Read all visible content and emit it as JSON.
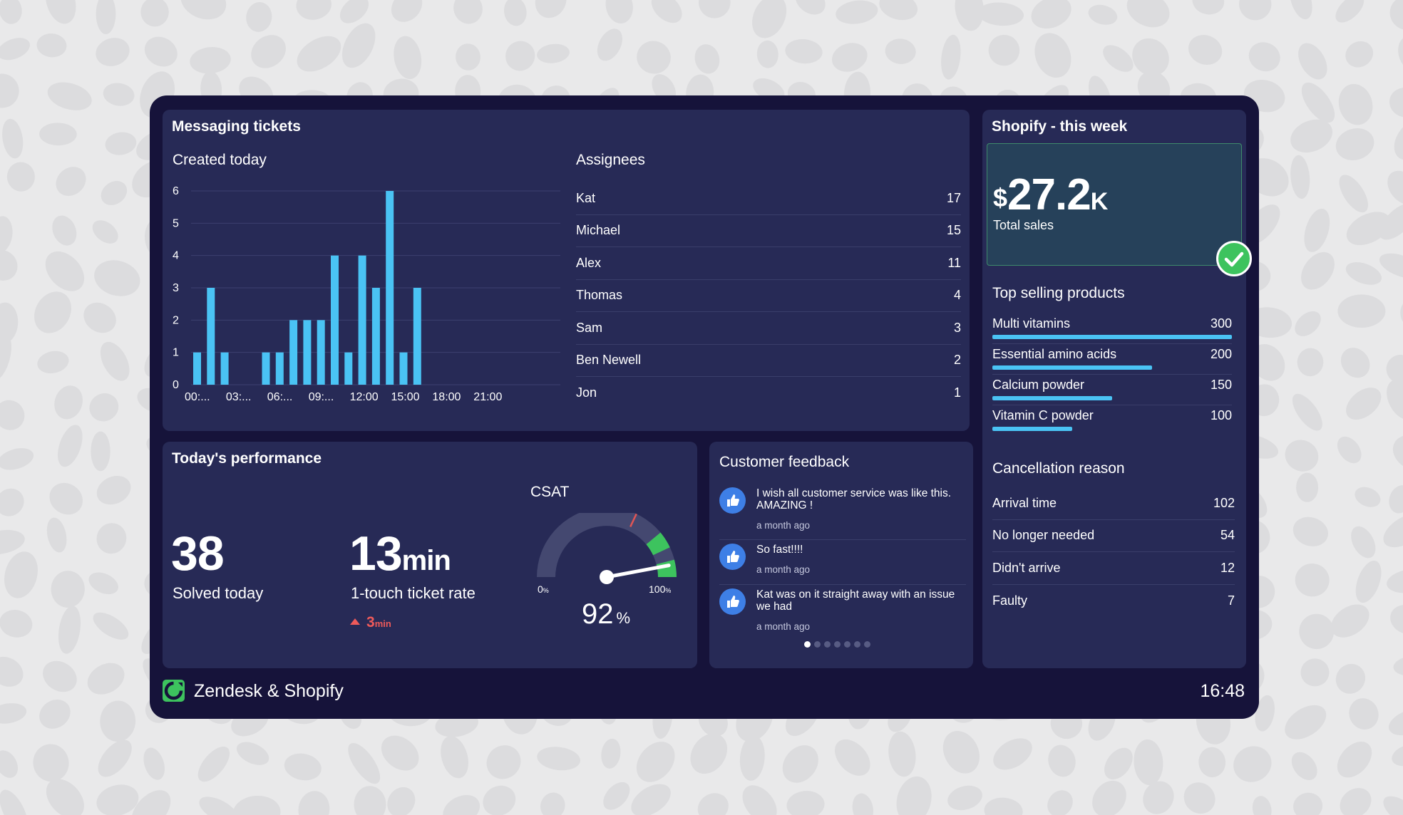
{
  "messaging": {
    "title": "Messaging tickets",
    "chart_title": "Created today",
    "assignees_title": "Assignees",
    "assignees": [
      {
        "name": "Kat",
        "count": "17"
      },
      {
        "name": "Michael",
        "count": "15"
      },
      {
        "name": "Alex",
        "count": "11"
      },
      {
        "name": "Thomas",
        "count": "4"
      },
      {
        "name": "Sam",
        "count": "3"
      },
      {
        "name": "Ben Newell",
        "count": "2"
      },
      {
        "name": "Jon",
        "count": "1"
      }
    ]
  },
  "chart_data": {
    "type": "bar",
    "title": "Created today",
    "y_ticks": [
      "0",
      "1",
      "2",
      "3",
      "4",
      "5",
      "6"
    ],
    "ylim": [
      0,
      6
    ],
    "x_tick_labels": [
      "00:...",
      "03:...",
      "06:...",
      "09:...",
      "12:00",
      "15:00",
      "18:00",
      "21:00"
    ],
    "x_tick_hours": [
      0,
      3,
      6,
      9,
      12,
      15,
      18,
      21
    ],
    "bars": [
      {
        "hour": 0,
        "value": 1
      },
      {
        "hour": 1,
        "value": 3
      },
      {
        "hour": 2,
        "value": 1
      },
      {
        "hour": 5,
        "value": 1
      },
      {
        "hour": 6,
        "value": 1
      },
      {
        "hour": 7,
        "value": 2
      },
      {
        "hour": 8,
        "value": 2
      },
      {
        "hour": 9,
        "value": 2
      },
      {
        "hour": 10,
        "value": 4
      },
      {
        "hour": 11,
        "value": 1
      },
      {
        "hour": 12,
        "value": 4
      },
      {
        "hour": 13,
        "value": 3
      },
      {
        "hour": 14,
        "value": 6
      },
      {
        "hour": 15,
        "value": 1
      },
      {
        "hour": 16,
        "value": 3
      }
    ],
    "bar_color": "#4ac3f4",
    "grid": true
  },
  "shopify": {
    "title": "Shopify - this week",
    "sales_currency": "$",
    "sales_value": "27.2",
    "sales_unit": "K",
    "sales_label": "Total sales",
    "products_title": "Top selling products",
    "products": [
      {
        "name": "Multi vitamins",
        "value": "300",
        "fraction": 1.0
      },
      {
        "name": "Essential amino acids",
        "value": "200",
        "fraction": 0.667
      },
      {
        "name": "Calcium powder",
        "value": "150",
        "fraction": 0.5
      },
      {
        "name": "Vitamin C powder",
        "value": "100",
        "fraction": 0.333
      }
    ],
    "cancel_title": "Cancellation reason",
    "cancel": [
      {
        "name": "Arrival time",
        "count": "102"
      },
      {
        "name": "No longer needed",
        "count": "54"
      },
      {
        "name": "Didn't arrive",
        "count": "12"
      },
      {
        "name": "Faulty",
        "count": "7"
      }
    ]
  },
  "performance": {
    "title": "Today's performance",
    "solved_value": "38",
    "solved_label": "Solved today",
    "touch_value": "13",
    "touch_unit": "min",
    "touch_label": "1-touch ticket rate",
    "delta_value": "3",
    "delta_unit": "min",
    "csat_title": "CSAT",
    "csat_value": "92",
    "csat_unit": "%",
    "csat_fraction": 0.92,
    "csat_target_fraction": 0.82,
    "gauge_min": "0",
    "gauge_max": "100",
    "gauge_unit": "%"
  },
  "feedback": {
    "title": "Customer feedback",
    "items": [
      {
        "text": "I wish all customer service was like this. AMAZING !",
        "time": "a month ago"
      },
      {
        "text": "So fast!!!!",
        "time": "a month ago"
      },
      {
        "text": "Kat was on it straight away with an issue we had",
        "time": "a month ago"
      }
    ],
    "page_count": 7,
    "active_page": 0
  },
  "footer": {
    "title": "Zendesk & Shopify",
    "time": "16:48"
  },
  "colors": {
    "frame": "#16133a",
    "panel": "#272a56",
    "bar": "#4ac3f4",
    "accent_green": "#3dc35e",
    "alert_red": "#ee5a5a",
    "thumb_blue": "#3e7fe6"
  }
}
